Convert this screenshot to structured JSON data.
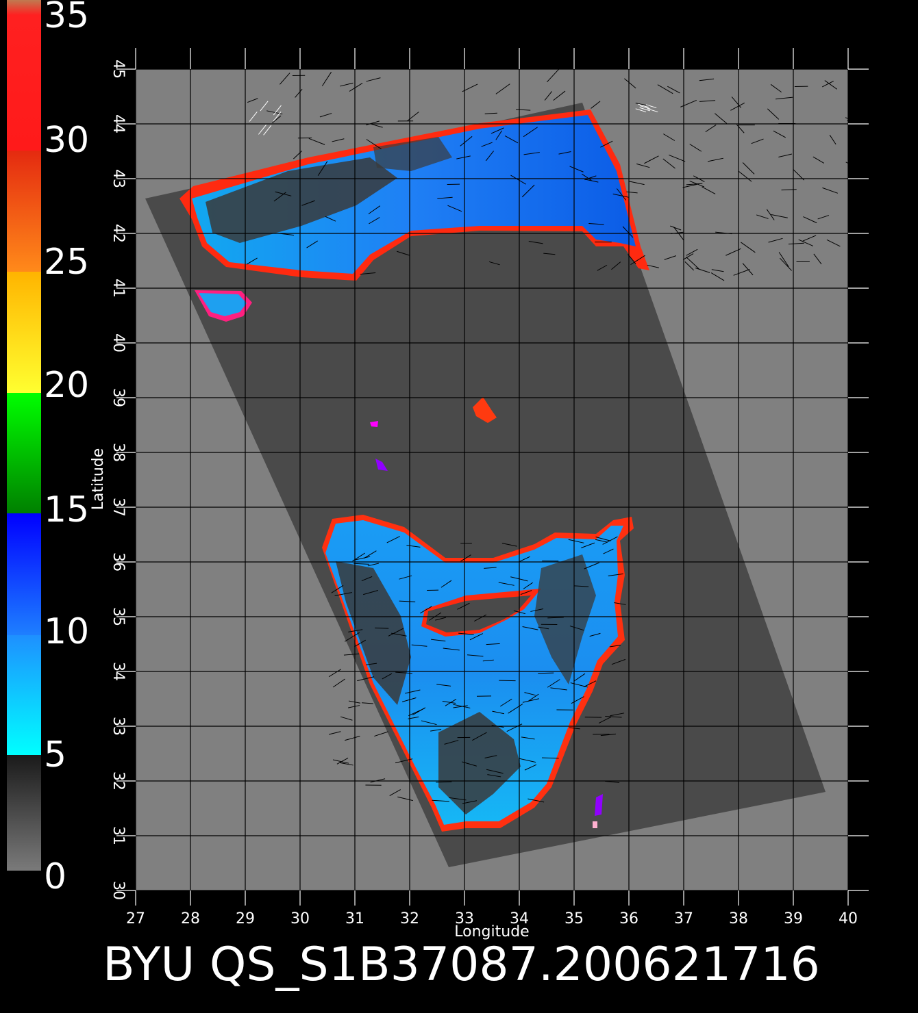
{
  "figure": {
    "footer_title": "BYU QS_S1B37087.200621716",
    "x_axis_label": "Longitude",
    "y_axis_label": "Latitude",
    "background": "#000000",
    "plot_background": "#808080",
    "swath_color": "#4a4a4a",
    "grid_color": "#000000"
  },
  "colorbar": {
    "labels": [
      "35",
      "30",
      "25",
      "20",
      "15",
      "10",
      "5",
      "0"
    ],
    "bands": [
      {
        "label": "30-35",
        "colors": [
          "#c07a50",
          "#ff2020"
        ]
      },
      {
        "label": "25-30",
        "colors": [
          "#e42a10",
          "#ff8a1a"
        ]
      },
      {
        "label": "20-25",
        "colors": [
          "#ffb400",
          "#ffff30"
        ]
      },
      {
        "label": "15-20",
        "colors": [
          "#00ff00",
          "#008000"
        ]
      },
      {
        "label": "10-15",
        "colors": [
          "#0000ff",
          "#1e7fff"
        ]
      },
      {
        "label": "5-10",
        "colors": [
          "#1e90ff",
          "#00ffff"
        ]
      },
      {
        "label": "0-5",
        "colors": [
          "#1a1a1a",
          "#7a7a7a"
        ]
      }
    ]
  },
  "axes": {
    "x_ticks": [
      "27",
      "28",
      "29",
      "30",
      "31",
      "32",
      "33",
      "34",
      "35",
      "36",
      "37",
      "38",
      "39",
      "40"
    ],
    "y_ticks": [
      "30",
      "31",
      "32",
      "33",
      "34",
      "35",
      "36",
      "37",
      "38",
      "39",
      "40",
      "41",
      "42",
      "43",
      "44",
      "45"
    ],
    "x_range": [
      27,
      40
    ],
    "y_range": [
      30,
      45
    ]
  },
  "features": {
    "black_sea": {
      "name": "black-sea-wind-field",
      "colors": [
        "#0a55e8",
        "#1aa6ff",
        "#00d8ff"
      ]
    },
    "mediterranean": {
      "name": "eastern-mediterranean-wind-field",
      "colors": [
        "#0a55e8",
        "#1aa6ff",
        "#00d8ff"
      ]
    },
    "marmara": {
      "name": "marmara-sea-wind-field"
    },
    "lake_tuz": {
      "name": "lake-tuz-high-backscatter",
      "color": "#ff3a10"
    },
    "coast_colors": [
      "#ffffff",
      "#ff2020",
      "#ffb400",
      "#ffff30",
      "#00ff00",
      "#ff00ff"
    ]
  }
}
